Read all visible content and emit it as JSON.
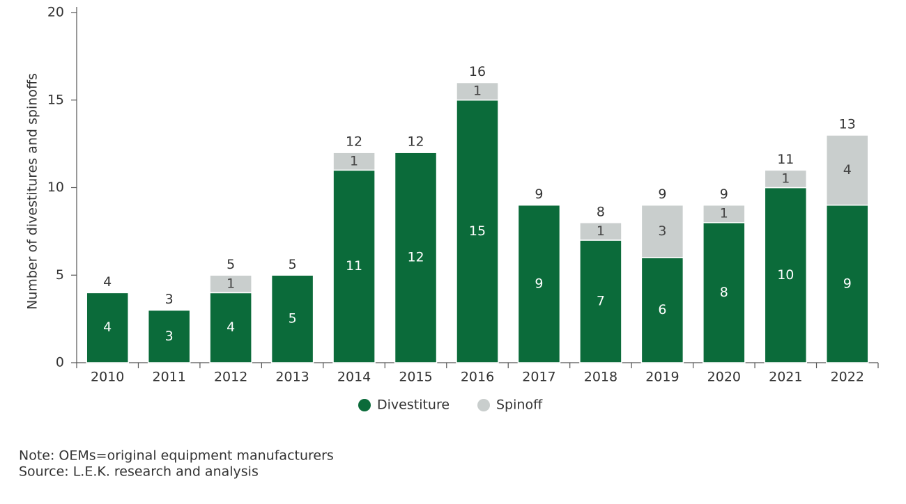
{
  "chart_data": {
    "type": "stacked_bar",
    "y_label": "Number of divestitures and spinoffs",
    "categories": [
      "2010",
      "2011",
      "2012",
      "2013",
      "2014",
      "2015",
      "2016",
      "2017",
      "2018",
      "2019",
      "2020",
      "2021",
      "2022"
    ],
    "series": [
      {
        "name": "Divestiture",
        "color": "#0b6b3a",
        "values": [
          4,
          3,
          4,
          5,
          11,
          12,
          15,
          9,
          7,
          6,
          8,
          10,
          9
        ]
      },
      {
        "name": "Spinoff",
        "color": "#c9cecd",
        "values": [
          0,
          0,
          1,
          0,
          1,
          0,
          1,
          0,
          1,
          3,
          1,
          1,
          4
        ]
      }
    ],
    "totals": [
      4,
      3,
      5,
      5,
      12,
      12,
      16,
      9,
      8,
      9,
      9,
      11,
      13
    ],
    "ylim": [
      0,
      20
    ],
    "yticks": [
      0,
      5,
      10,
      15,
      20
    ]
  },
  "notes": [
    "Note: OEMs=original equipment manufacturers",
    "Source: L.E.K. research and analysis"
  ]
}
